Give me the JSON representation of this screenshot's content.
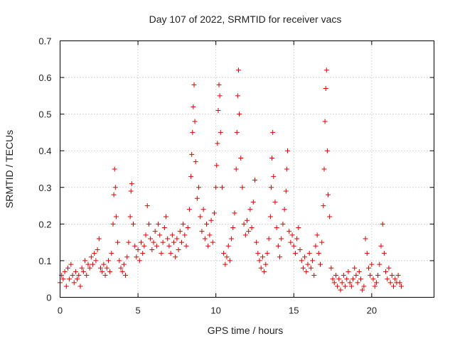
{
  "chart_data": {
    "type": "scatter",
    "title": "Day 107 of 2022, SRMTID for receiver vacs",
    "xlabel": "GPS time / hours",
    "ylabel": "SRMTID / TECUs",
    "xlim": [
      0,
      24
    ],
    "ylim": [
      0,
      0.7
    ],
    "xticks": [
      0,
      5,
      10,
      15,
      20
    ],
    "yticks": [
      0,
      0.1,
      0.2,
      0.3,
      0.4,
      0.5,
      0.6,
      0.7
    ],
    "xtick_labels": [
      "0",
      "5",
      "10",
      "15",
      "20"
    ],
    "ytick_labels": [
      "0",
      "0.1",
      "0.2",
      "0.3",
      "0.4",
      "0.5",
      "0.6",
      "0.7"
    ],
    "grid": true,
    "marker": "+",
    "color": "#e00000",
    "series": [
      {
        "name": "SRMTID",
        "points": [
          [
            0.0,
            0.04
          ],
          [
            0.1,
            0.06
          ],
          [
            0.2,
            0.05
          ],
          [
            0.3,
            0.07
          ],
          [
            0.4,
            0.03
          ],
          [
            0.5,
            0.08
          ],
          [
            0.6,
            0.05
          ],
          [
            0.7,
            0.09
          ],
          [
            0.8,
            0.06
          ],
          [
            0.9,
            0.04
          ],
          [
            1.0,
            0.07
          ],
          [
            1.1,
            0.05
          ],
          [
            1.2,
            0.06
          ],
          [
            1.3,
            0.03
          ],
          [
            1.4,
            0.08
          ],
          [
            1.5,
            0.07
          ],
          [
            1.6,
            0.1
          ],
          [
            1.7,
            0.06
          ],
          [
            1.8,
            0.09
          ],
          [
            1.9,
            0.08
          ],
          [
            2.0,
            0.11
          ],
          [
            2.1,
            0.09
          ],
          [
            2.2,
            0.12
          ],
          [
            2.3,
            0.1
          ],
          [
            2.4,
            0.13
          ],
          [
            2.5,
            0.16
          ],
          [
            2.6,
            0.08
          ],
          [
            2.7,
            0.07
          ],
          [
            2.8,
            0.09
          ],
          [
            2.9,
            0.06
          ],
          [
            3.0,
            0.08
          ],
          [
            3.1,
            0.1
          ],
          [
            3.2,
            0.07
          ],
          [
            3.3,
            0.12
          ],
          [
            3.4,
            0.2
          ],
          [
            3.45,
            0.28
          ],
          [
            3.5,
            0.35
          ],
          [
            3.55,
            0.3
          ],
          [
            3.6,
            0.22
          ],
          [
            3.7,
            0.15
          ],
          [
            3.8,
            0.1
          ],
          [
            3.9,
            0.08
          ],
          [
            4.0,
            0.07
          ],
          [
            4.1,
            0.09
          ],
          [
            4.2,
            0.06
          ],
          [
            4.3,
            0.11
          ],
          [
            4.4,
            0.15
          ],
          [
            4.5,
            0.22
          ],
          [
            4.55,
            0.29
          ],
          [
            4.6,
            0.31
          ],
          [
            4.7,
            0.2
          ],
          [
            4.8,
            0.14
          ],
          [
            4.9,
            0.11
          ],
          [
            5.0,
            0.13
          ],
          [
            5.1,
            0.1
          ],
          [
            5.2,
            0.15
          ],
          [
            5.3,
            0.12
          ],
          [
            5.4,
            0.14
          ],
          [
            5.5,
            0.17
          ],
          [
            5.6,
            0.25
          ],
          [
            5.7,
            0.2
          ],
          [
            5.8,
            0.16
          ],
          [
            5.9,
            0.13
          ],
          [
            6.0,
            0.15
          ],
          [
            6.1,
            0.18
          ],
          [
            6.2,
            0.14
          ],
          [
            6.3,
            0.2
          ],
          [
            6.4,
            0.17
          ],
          [
            6.5,
            0.12
          ],
          [
            6.6,
            0.15
          ],
          [
            6.7,
            0.19
          ],
          [
            6.8,
            0.22
          ],
          [
            6.9,
            0.16
          ],
          [
            7.0,
            0.14
          ],
          [
            7.1,
            0.12
          ],
          [
            7.2,
            0.17
          ],
          [
            7.3,
            0.15
          ],
          [
            7.4,
            0.11
          ],
          [
            7.5,
            0.16
          ],
          [
            7.6,
            0.13
          ],
          [
            7.7,
            0.18
          ],
          [
            7.8,
            0.15
          ],
          [
            7.9,
            0.2
          ],
          [
            8.0,
            0.17
          ],
          [
            8.1,
            0.14
          ],
          [
            8.2,
            0.19
          ],
          [
            8.3,
            0.24
          ],
          [
            8.4,
            0.33
          ],
          [
            8.45,
            0.39
          ],
          [
            8.5,
            0.45
          ],
          [
            8.55,
            0.52
          ],
          [
            8.6,
            0.58
          ],
          [
            8.65,
            0.48
          ],
          [
            8.7,
            0.37
          ],
          [
            8.8,
            0.27
          ],
          [
            8.9,
            0.3
          ],
          [
            9.0,
            0.22
          ],
          [
            9.1,
            0.18
          ],
          [
            9.2,
            0.24
          ],
          [
            9.3,
            0.16
          ],
          [
            9.4,
            0.2
          ],
          [
            9.5,
            0.14
          ],
          [
            9.6,
            0.17
          ],
          [
            9.7,
            0.21
          ],
          [
            9.8,
            0.15
          ],
          [
            9.9,
            0.23
          ],
          [
            10.0,
            0.3
          ],
          [
            10.05,
            0.36
          ],
          [
            10.1,
            0.42
          ],
          [
            10.15,
            0.51
          ],
          [
            10.2,
            0.58
          ],
          [
            10.25,
            0.55
          ],
          [
            10.3,
            0.45
          ],
          [
            10.4,
            0.3
          ],
          [
            10.5,
            0.12
          ],
          [
            10.6,
            0.09
          ],
          [
            10.7,
            0.11
          ],
          [
            10.8,
            0.14
          ],
          [
            10.9,
            0.1
          ],
          [
            11.0,
            0.16
          ],
          [
            11.1,
            0.19
          ],
          [
            11.2,
            0.23
          ],
          [
            11.3,
            0.35
          ],
          [
            11.35,
            0.45
          ],
          [
            11.4,
            0.55
          ],
          [
            11.45,
            0.62
          ],
          [
            11.5,
            0.5
          ],
          [
            11.6,
            0.38
          ],
          [
            11.7,
            0.3
          ],
          [
            11.8,
            0.2
          ],
          [
            11.9,
            0.17
          ],
          [
            12.0,
            0.21
          ],
          [
            12.1,
            0.18
          ],
          [
            12.2,
            0.24
          ],
          [
            12.3,
            0.19
          ],
          [
            12.4,
            0.26
          ],
          [
            12.5,
            0.32
          ],
          [
            12.6,
            0.15
          ],
          [
            12.7,
            0.12
          ],
          [
            12.8,
            0.1
          ],
          [
            12.9,
            0.08
          ],
          [
            13.0,
            0.11
          ],
          [
            13.1,
            0.07
          ],
          [
            13.2,
            0.09
          ],
          [
            13.3,
            0.12
          ],
          [
            13.4,
            0.16
          ],
          [
            13.5,
            0.22
          ],
          [
            13.55,
            0.3
          ],
          [
            13.6,
            0.38
          ],
          [
            13.65,
            0.45
          ],
          [
            13.7,
            0.33
          ],
          [
            13.8,
            0.26
          ],
          [
            13.9,
            0.19
          ],
          [
            14.0,
            0.14
          ],
          [
            14.1,
            0.11
          ],
          [
            14.2,
            0.16
          ],
          [
            14.3,
            0.2
          ],
          [
            14.4,
            0.24
          ],
          [
            14.5,
            0.29
          ],
          [
            14.55,
            0.35
          ],
          [
            14.6,
            0.4
          ],
          [
            14.7,
            0.18
          ],
          [
            14.8,
            0.15
          ],
          [
            14.9,
            0.17
          ],
          [
            15.0,
            0.14
          ],
          [
            15.1,
            0.12
          ],
          [
            15.2,
            0.16
          ],
          [
            15.3,
            0.19
          ],
          [
            15.4,
            0.13
          ],
          [
            15.5,
            0.1
          ],
          [
            15.6,
            0.08
          ],
          [
            15.7,
            0.11
          ],
          [
            15.8,
            0.07
          ],
          [
            15.9,
            0.09
          ],
          [
            16.0,
            0.12
          ],
          [
            16.1,
            0.08
          ],
          [
            16.2,
            0.1
          ],
          [
            16.3,
            0.06
          ],
          [
            16.4,
            0.14
          ],
          [
            16.5,
            0.17
          ],
          [
            16.6,
            0.12
          ],
          [
            16.7,
            0.09
          ],
          [
            16.8,
            0.15
          ],
          [
            16.9,
            0.25
          ],
          [
            16.95,
            0.35
          ],
          [
            17.0,
            0.48
          ],
          [
            17.05,
            0.57
          ],
          [
            17.1,
            0.62
          ],
          [
            17.15,
            0.4
          ],
          [
            17.2,
            0.28
          ],
          [
            17.3,
            0.22
          ],
          [
            17.4,
            0.08
          ],
          [
            17.5,
            0.05
          ],
          [
            17.6,
            0.04
          ],
          [
            17.7,
            0.06
          ],
          [
            17.8,
            0.03
          ],
          [
            17.9,
            0.05
          ],
          [
            18.0,
            0.02
          ],
          [
            18.1,
            0.04
          ],
          [
            18.2,
            0.06
          ],
          [
            18.3,
            0.03
          ],
          [
            18.4,
            0.05
          ],
          [
            18.5,
            0.07
          ],
          [
            18.6,
            0.04
          ],
          [
            18.7,
            0.03
          ],
          [
            18.8,
            0.05
          ],
          [
            18.9,
            0.08
          ],
          [
            19.0,
            0.06
          ],
          [
            19.1,
            0.04
          ],
          [
            19.2,
            0.07
          ],
          [
            19.3,
            0.05
          ],
          [
            19.4,
            0.02
          ],
          [
            19.5,
            0.03
          ],
          [
            19.6,
            0.16
          ],
          [
            19.7,
            0.12
          ],
          [
            19.8,
            0.08
          ],
          [
            19.9,
            0.06
          ],
          [
            20.0,
            0.09
          ],
          [
            20.1,
            0.05
          ],
          [
            20.2,
            0.03
          ],
          [
            20.3,
            0.04
          ],
          [
            20.4,
            0.06
          ],
          [
            20.5,
            0.09
          ],
          [
            20.6,
            0.14
          ],
          [
            20.7,
            0.2
          ],
          [
            20.8,
            0.12
          ],
          [
            20.9,
            0.07
          ],
          [
            21.0,
            0.05
          ],
          [
            21.1,
            0.08
          ],
          [
            21.2,
            0.04
          ],
          [
            21.3,
            0.06
          ],
          [
            21.4,
            0.03
          ],
          [
            21.5,
            0.05
          ],
          [
            21.6,
            0.04
          ],
          [
            21.7,
            0.06
          ],
          [
            21.8,
            0.04
          ],
          [
            21.9,
            0.03
          ]
        ]
      }
    ]
  }
}
